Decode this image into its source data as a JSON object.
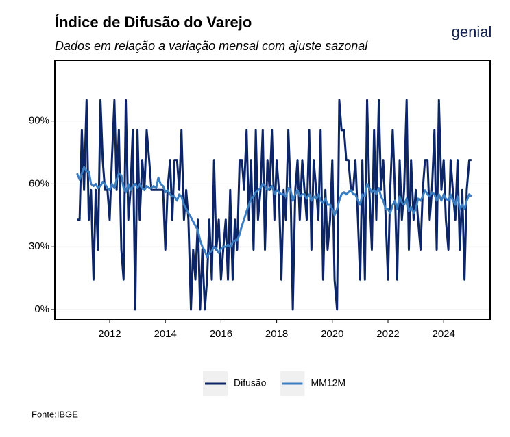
{
  "chart_data": {
    "type": "line",
    "title": "Índice de Difusão do Varejo",
    "subtitle": "Dados em relação a variação mensal com ajuste sazonal",
    "logo": "genial",
    "source": "Fonte:IBGE",
    "x": [
      2010.83,
      2010.92,
      2011.0,
      2011.08,
      2011.17,
      2011.25,
      2011.33,
      2011.42,
      2011.5,
      2011.58,
      2011.67,
      2011.75,
      2011.83,
      2011.92,
      2012.0,
      2012.08,
      2012.17,
      2012.25,
      2012.33,
      2012.42,
      2012.5,
      2012.58,
      2012.67,
      2012.75,
      2012.83,
      2012.92,
      2013.0,
      2013.08,
      2013.17,
      2013.25,
      2013.33,
      2013.42,
      2013.5,
      2013.58,
      2013.67,
      2013.75,
      2013.83,
      2013.92,
      2014.0,
      2014.08,
      2014.17,
      2014.25,
      2014.33,
      2014.42,
      2014.5,
      2014.58,
      2014.67,
      2014.75,
      2014.83,
      2014.92,
      2015.0,
      2015.08,
      2015.17,
      2015.25,
      2015.33,
      2015.42,
      2015.5,
      2015.58,
      2015.67,
      2015.75,
      2015.83,
      2015.92,
      2016.0,
      2016.08,
      2016.17,
      2016.25,
      2016.33,
      2016.42,
      2016.5,
      2016.58,
      2016.67,
      2016.75,
      2016.83,
      2016.92,
      2017.0,
      2017.08,
      2017.17,
      2017.25,
      2017.33,
      2017.42,
      2017.5,
      2017.58,
      2017.67,
      2017.75,
      2017.83,
      2017.92,
      2018.0,
      2018.08,
      2018.17,
      2018.25,
      2018.33,
      2018.42,
      2018.5,
      2018.58,
      2018.67,
      2018.75,
      2018.83,
      2018.92,
      2019.0,
      2019.08,
      2019.17,
      2019.25,
      2019.33,
      2019.42,
      2019.5,
      2019.58,
      2019.67,
      2019.75,
      2019.83,
      2019.92,
      2020.0,
      2020.08,
      2020.17,
      2020.25,
      2020.33,
      2020.42,
      2020.5,
      2020.58,
      2020.67,
      2020.75,
      2020.83,
      2020.92,
      2021.0,
      2021.08,
      2021.17,
      2021.25,
      2021.33,
      2021.42,
      2021.5,
      2021.58,
      2021.67,
      2021.75,
      2021.83,
      2021.92,
      2022.0,
      2022.08,
      2022.17,
      2022.25,
      2022.33,
      2022.42,
      2022.5,
      2022.58,
      2022.67,
      2022.75,
      2022.83,
      2022.92,
      2023.0,
      2023.08,
      2023.17,
      2023.25,
      2023.33,
      2023.42,
      2023.5,
      2023.58,
      2023.67,
      2023.75,
      2023.83,
      2023.92,
      2024.0,
      2024.08,
      2024.17,
      2024.25,
      2024.33,
      2024.42,
      2024.5,
      2024.58,
      2024.67,
      2024.75,
      2024.83,
      2024.92,
      2025.0
    ],
    "series": [
      {
        "name": "Difusão",
        "color": "#0b2566",
        "values": [
          42.9,
          42.9,
          85.7,
          57.1,
          100,
          42.9,
          57.1,
          14.3,
          57.1,
          28.6,
          100,
          71.4,
          57.1,
          57.1,
          42.9,
          71.4,
          100,
          57.1,
          85.7,
          28.6,
          14.3,
          100,
          42.9,
          57.1,
          85.7,
          0,
          85.7,
          42.9,
          71.4,
          57.1,
          85.7,
          71.4,
          57.1,
          57.1,
          57.1,
          57.1,
          57.1,
          57.1,
          28.6,
          57.1,
          71.4,
          42.9,
          71.4,
          71.4,
          57.1,
          85.7,
          42.9,
          57.1,
          42.9,
          0,
          28.6,
          14.3,
          42.9,
          0,
          28.6,
          0,
          14.3,
          42.9,
          14.3,
          71.4,
          28.6,
          42.9,
          14.3,
          28.6,
          42.9,
          14.3,
          57.1,
          14.3,
          42.9,
          28.6,
          71.4,
          71.4,
          57.1,
          85.7,
          42.9,
          71.4,
          28.6,
          85.7,
          42.9,
          57.1,
          85.7,
          28.6,
          71.4,
          57.1,
          85.7,
          42.9,
          71.4,
          57.1,
          14.3,
          57.1,
          42.9,
          85.7,
          57.1,
          0,
          57.1,
          71.4,
          42.9,
          71.4,
          57.1,
          42.9,
          85.7,
          28.6,
          71.4,
          57.1,
          42.9,
          85.7,
          14.3,
          57.1,
          28.6,
          42.9,
          71.4,
          14.3,
          0,
          100,
          85.7,
          85.7,
          71.4,
          71.4,
          57.1,
          57.1,
          71.4,
          42.9,
          14.3,
          71.4,
          14.3,
          100,
          57.1,
          28.6,
          85.7,
          42.9,
          100,
          57.1,
          71.4,
          42.9,
          14.3,
          57.1,
          85.7,
          57.1,
          14.3,
          71.4,
          42.9,
          57.1,
          100,
          28.6,
          71.4,
          42.9,
          57.1,
          42.9,
          28.6,
          57.1,
          71.4,
          71.4,
          42.9,
          57.1,
          85.7,
          28.6,
          100,
          57.1,
          71.4,
          42.9,
          28.6,
          71.4,
          57.1,
          42.9,
          71.4,
          28.6,
          57.1,
          14.3,
          57.1,
          71.4,
          71.4
        ]
      },
      {
        "name": "MM12M",
        "color": "#3a7dc0",
        "values": [
          65,
          62,
          65,
          68,
          66,
          66,
          60,
          59,
          60,
          58,
          59,
          61,
          60,
          58,
          57,
          60,
          58,
          62,
          65,
          64,
          58,
          56,
          60,
          57,
          59,
          60,
          58,
          60,
          58,
          57,
          59,
          58,
          58,
          59,
          58,
          63,
          60,
          59,
          56,
          57,
          55,
          54,
          54,
          52,
          55,
          54,
          50,
          48,
          46,
          44,
          42,
          40,
          38,
          33,
          30,
          28,
          25,
          27,
          28,
          30,
          29,
          27,
          29,
          30,
          30,
          31,
          30,
          32,
          33,
          33,
          36,
          40,
          43,
          47,
          50,
          53,
          54,
          56,
          57,
          58,
          60,
          59,
          57,
          58,
          59,
          55,
          57,
          56,
          55,
          55,
          54,
          58,
          57,
          52,
          55,
          57,
          54,
          55,
          55,
          53,
          55,
          52,
          54,
          53,
          55,
          52,
          51,
          53,
          50,
          50,
          48,
          45,
          48,
          52,
          55,
          56,
          55,
          56,
          57,
          55,
          55,
          52,
          50,
          55,
          54,
          60,
          58,
          56,
          57,
          55,
          58,
          54,
          52,
          48,
          48,
          46,
          50,
          52,
          48,
          54,
          51,
          50,
          53,
          47,
          49,
          46,
          48,
          53,
          52,
          54,
          57,
          55,
          54,
          56,
          55,
          52,
          55,
          52,
          55,
          53,
          52,
          55,
          52,
          50,
          54,
          48,
          50,
          48,
          52,
          55,
          54
        ]
      }
    ],
    "xlim": [
      2010.03,
      2025.67
    ],
    "xticks": [
      2012,
      2014,
      2016,
      2018,
      2020,
      2022,
      2024
    ],
    "ylim": [
      -4.6,
      119
    ],
    "yticks": [
      {
        "value": 0,
        "label": "0%"
      },
      {
        "value": 30,
        "label": "30%"
      },
      {
        "value": 60,
        "label": "60%"
      },
      {
        "value": 90,
        "label": "90%"
      }
    ],
    "grid": true,
    "legend": "bottom"
  }
}
